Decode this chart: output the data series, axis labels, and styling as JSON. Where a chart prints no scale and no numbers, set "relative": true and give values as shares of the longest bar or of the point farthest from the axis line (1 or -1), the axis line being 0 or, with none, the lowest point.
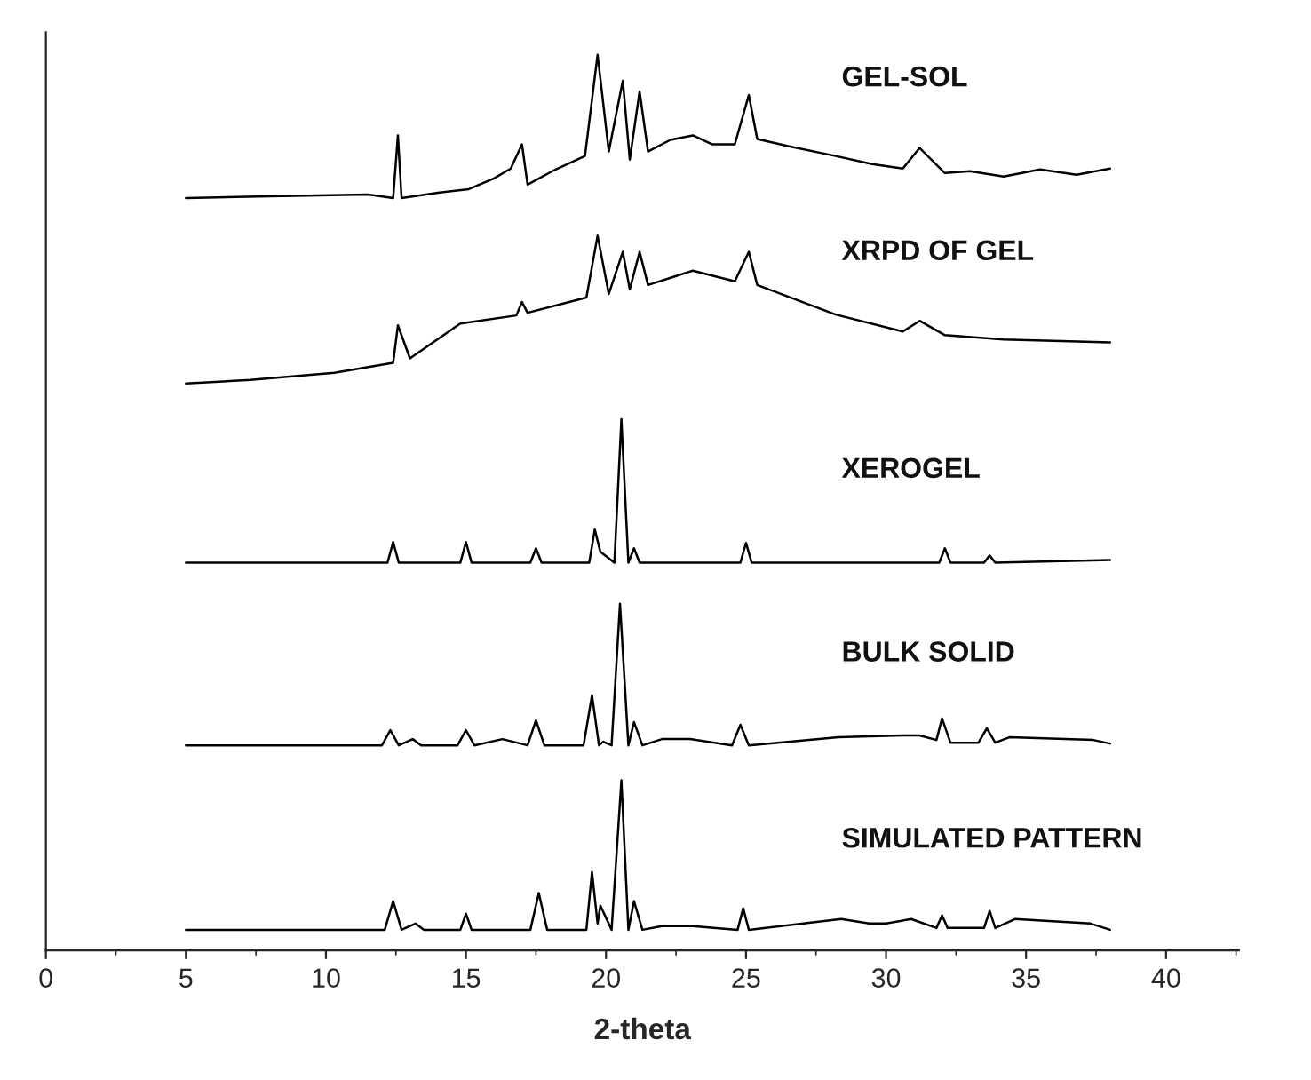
{
  "chart_data": {
    "type": "line",
    "relative": true,
    "xlabel": "2-theta",
    "xlim": [
      0,
      42.6
    ],
    "xticks": [
      0,
      5,
      10,
      15,
      20,
      25,
      30,
      35,
      40
    ],
    "tick_labels": "x",
    "series": [
      {
        "name": "GEL-SOL",
        "color": "#000000",
        "x": [
          5.0,
          8.0,
          11.5,
          12.4,
          12.57,
          12.7,
          14.0,
          15.1,
          16.0,
          16.6,
          17.0,
          17.2,
          18.2,
          19.25,
          19.7,
          20.1,
          20.6,
          20.85,
          21.2,
          21.5,
          22.3,
          23.1,
          23.8,
          24.6,
          25.1,
          25.4,
          26.5,
          28.2,
          29.5,
          30.6,
          31.2,
          32.1,
          33.0,
          34.2,
          35.5,
          36.8,
          38.0
        ],
        "values": [
          0.84,
          0.842,
          0.844,
          0.84,
          0.91,
          0.84,
          0.846,
          0.85,
          0.862,
          0.873,
          0.9,
          0.855,
          0.872,
          0.887,
          1.0,
          0.892,
          0.971,
          0.883,
          0.959,
          0.892,
          0.905,
          0.91,
          0.9,
          0.9,
          0.955,
          0.906,
          0.898,
          0.887,
          0.878,
          0.873,
          0.896,
          0.868,
          0.87,
          0.864,
          0.872,
          0.866,
          0.873
        ]
      },
      {
        "name": "XRPD OF GEL",
        "color": "#000000",
        "x": [
          5.0,
          7.3,
          10.3,
          12.4,
          12.57,
          13.0,
          14.8,
          16.8,
          17.0,
          17.2,
          19.3,
          19.7,
          20.1,
          20.6,
          20.85,
          21.2,
          21.5,
          23.1,
          24.6,
          25.1,
          25.4,
          28.2,
          30.6,
          31.2,
          32.1,
          34.2,
          38.0
        ],
        "values": [
          0.633,
          0.637,
          0.645,
          0.656,
          0.698,
          0.661,
          0.7,
          0.709,
          0.724,
          0.712,
          0.729,
          0.798,
          0.733,
          0.78,
          0.738,
          0.78,
          0.743,
          0.759,
          0.747,
          0.78,
          0.743,
          0.71,
          0.691,
          0.703,
          0.687,
          0.682,
          0.679
        ]
      },
      {
        "name": "XEROGEL",
        "color": "#000000",
        "x": [
          5.0,
          12.2,
          12.4,
          12.6,
          14.8,
          15.0,
          15.2,
          17.3,
          17.5,
          17.7,
          19.4,
          19.6,
          19.8,
          20.3,
          20.55,
          20.8,
          21.0,
          21.2,
          24.8,
          25.0,
          25.2,
          31.9,
          32.1,
          32.3,
          33.5,
          33.7,
          33.9,
          38.0
        ],
        "values": [
          0.433,
          0.433,
          0.456,
          0.433,
          0.433,
          0.456,
          0.433,
          0.433,
          0.449,
          0.433,
          0.433,
          0.47,
          0.445,
          0.433,
          0.593,
          0.433,
          0.449,
          0.433,
          0.433,
          0.455,
          0.433,
          0.433,
          0.449,
          0.433,
          0.433,
          0.441,
          0.433,
          0.436
        ]
      },
      {
        "name": "BULK SOLID",
        "color": "#000000",
        "x": [
          5.0,
          12.0,
          12.3,
          12.6,
          13.1,
          13.4,
          14.7,
          15.0,
          15.3,
          16.3,
          17.2,
          17.5,
          17.8,
          19.2,
          19.5,
          19.75,
          19.9,
          20.2,
          20.5,
          20.8,
          21.0,
          21.3,
          22.0,
          23.0,
          24.5,
          24.8,
          25.1,
          28.3,
          30.6,
          31.2,
          31.8,
          32.0,
          32.3,
          33.3,
          33.6,
          33.9,
          34.4,
          37.4,
          38.0
        ],
        "values": [
          0.229,
          0.229,
          0.246,
          0.229,
          0.236,
          0.229,
          0.229,
          0.246,
          0.229,
          0.236,
          0.229,
          0.257,
          0.229,
          0.229,
          0.285,
          0.229,
          0.233,
          0.229,
          0.387,
          0.229,
          0.255,
          0.229,
          0.236,
          0.236,
          0.229,
          0.252,
          0.229,
          0.238,
          0.24,
          0.24,
          0.235,
          0.259,
          0.232,
          0.232,
          0.248,
          0.232,
          0.238,
          0.235,
          0.231
        ]
      },
      {
        "name": "SIMULATED PATTERN",
        "color": "#000000",
        "x": [
          5.0,
          12.1,
          12.4,
          12.7,
          13.2,
          13.5,
          14.8,
          15.0,
          15.2,
          17.3,
          17.6,
          17.9,
          19.3,
          19.5,
          19.7,
          19.8,
          20.2,
          20.55,
          20.8,
          21.0,
          21.3,
          22.0,
          23.1,
          24.7,
          24.9,
          25.1,
          28.4,
          29.4,
          30.0,
          30.9,
          31.8,
          32.0,
          32.2,
          33.5,
          33.7,
          33.9,
          34.6,
          37.3,
          38.0
        ],
        "values": [
          0.023,
          0.023,
          0.055,
          0.023,
          0.03,
          0.023,
          0.023,
          0.041,
          0.023,
          0.023,
          0.064,
          0.023,
          0.023,
          0.0875,
          0.03,
          0.05,
          0.023,
          0.19,
          0.023,
          0.055,
          0.023,
          0.027,
          0.027,
          0.023,
          0.047,
          0.023,
          0.035,
          0.03,
          0.03,
          0.035,
          0.025,
          0.039,
          0.025,
          0.025,
          0.044,
          0.025,
          0.035,
          0.03,
          0.023
        ]
      }
    ]
  }
}
